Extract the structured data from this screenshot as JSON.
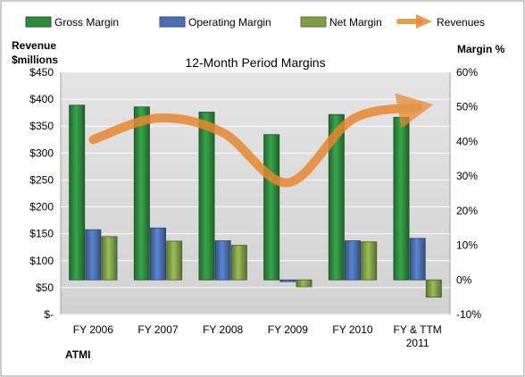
{
  "chart_data": {
    "type": "bar",
    "title": "12-Month Period Margins",
    "company_label": "ATMI",
    "left_axis_label_line1": "Revenue",
    "left_axis_label_line2": "$millions",
    "right_axis_label": "Margin %",
    "categories": [
      [
        "FY 2006"
      ],
      [
        "FY 2007"
      ],
      [
        "FY 2008"
      ],
      [
        "FY 2009"
      ],
      [
        "FY 2010"
      ],
      [
        "FY & TTM",
        "2011"
      ]
    ],
    "left_axis": {
      "ticks": [
        "$-",
        "$50",
        "$100",
        "$150",
        "$200",
        "$250",
        "$300",
        "$350",
        "$400",
        "$450"
      ],
      "ylim": [
        0,
        450
      ]
    },
    "right_axis": {
      "ticks": [
        "-10%",
        "0%",
        "10%",
        "20%",
        "30%",
        "40%",
        "50%",
        "60%"
      ],
      "ylim": [
        -10,
        60
      ]
    },
    "grid": true,
    "legend_position": "top",
    "series": [
      {
        "name": "Gross Margin",
        "axis": "right",
        "kind": "bar",
        "color": "#2e8b3e",
        "values": [
          50.5,
          50.0,
          48.5,
          42.0,
          47.8,
          47.0
        ]
      },
      {
        "name": "Operating Margin",
        "axis": "right",
        "kind": "bar",
        "color": "#4a6fb0",
        "values": [
          14.5,
          15.0,
          11.3,
          -0.5,
          11.3,
          12.0
        ]
      },
      {
        "name": "Net Margin",
        "axis": "right",
        "kind": "bar",
        "color": "#7f9e47",
        "values": [
          12.5,
          11.2,
          10.0,
          -2.0,
          11.0,
          -5.0
        ]
      },
      {
        "name": "Revenues",
        "axis": "left",
        "kind": "line",
        "color": "#e8882e",
        "values": [
          325,
          365,
          338,
          245,
          363,
          385
        ]
      }
    ]
  }
}
